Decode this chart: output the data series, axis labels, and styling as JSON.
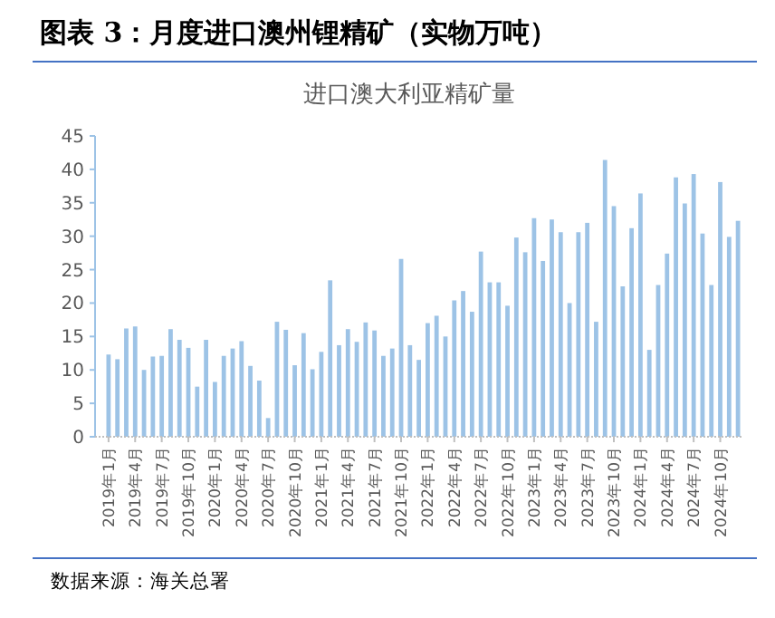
{
  "chart_data": {
    "type": "bar",
    "title": "图表 3：月度进口澳州锂精矿（实物万吨）",
    "subtitle": "进口澳大利亚精矿量",
    "annotations": [
      "数据来源：海关总署"
    ],
    "categories": [
      "2019年1月",
      null,
      null,
      "2019年4月",
      null,
      null,
      "2019年7月",
      null,
      null,
      "2019年10月",
      null,
      null,
      "2020年1月",
      null,
      null,
      "2020年4月",
      null,
      null,
      "2020年7月",
      null,
      null,
      "2020年10月",
      null,
      null,
      "2021年1月",
      null,
      null,
      "2021年4月",
      null,
      null,
      "2021年7月",
      null,
      null,
      "2021年10月",
      null,
      null,
      "2022年1月",
      null,
      null,
      "2022年4月",
      null,
      null,
      "2022年7月",
      null,
      null,
      "2022年10月",
      null,
      null,
      "2023年1月",
      null,
      null,
      "2023年4月",
      null,
      null,
      "2023年7月",
      null,
      null,
      "2023年10月",
      null,
      null,
      "2024年1月",
      null,
      null,
      "2024年4月",
      null,
      null,
      "2024年7月",
      null,
      null,
      "2024年10月",
      null,
      null
    ],
    "values": [
      12.3,
      11.6,
      16.2,
      16.5,
      10.0,
      12.0,
      12.1,
      16.1,
      14.5,
      13.3,
      7.5,
      14.5,
      8.2,
      12.1,
      13.2,
      14.3,
      10.6,
      8.4,
      2.8,
      17.2,
      16.0,
      10.7,
      15.5,
      10.1,
      12.7,
      23.4,
      13.7,
      16.1,
      14.2,
      17.1,
      15.9,
      12.1,
      13.2,
      26.6,
      13.7,
      11.5,
      17.0,
      18.1,
      15.0,
      20.4,
      21.8,
      18.7,
      27.7,
      23.1,
      23.1,
      19.6,
      29.8,
      27.6,
      32.7,
      26.3,
      32.5,
      30.6,
      20.0,
      30.6,
      32.0,
      17.2,
      41.4,
      34.5,
      22.5,
      31.2,
      36.4,
      13.0,
      22.7,
      27.4,
      38.8,
      34.9,
      39.3,
      30.4,
      22.7,
      38.1,
      29.9,
      32.3
    ],
    "color": "#9dc3e6",
    "ylim": [
      0,
      45
    ],
    "yticks": [
      0,
      5,
      10,
      15,
      20,
      25,
      30,
      35,
      40,
      45
    ],
    "grid": false
  }
}
